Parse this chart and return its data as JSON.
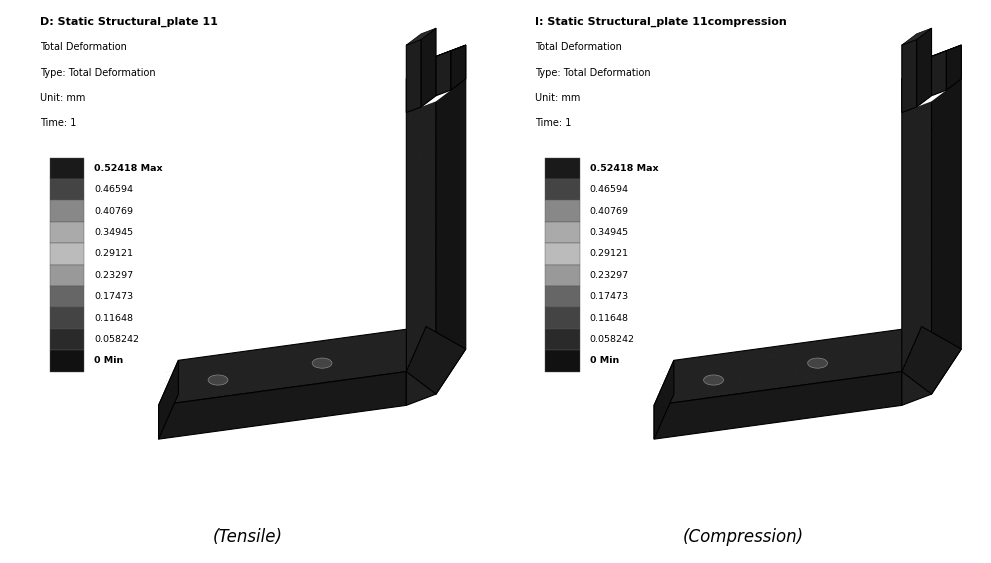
{
  "background_color": "#ffffff",
  "left_panel": {
    "title_line1": "D: Static Structural_plate 11",
    "title_line2": "Total Deformation",
    "title_line3": "Type: Total Deformation",
    "title_line4": "Unit: mm",
    "title_line5": "Time: 1",
    "caption": "(Tensile)"
  },
  "right_panel": {
    "title_line1": "I: Static Structural_plate 11compression",
    "title_line2": "Total Deformation",
    "title_line3": "Type: Total Deformation",
    "title_line4": "Unit: mm",
    "title_line5": "Time: 1",
    "caption": "(Compression)"
  },
  "colorbar_labels": [
    "0.52418 Max",
    "0.46594",
    "0.40769",
    "0.34945",
    "0.29121",
    "0.23297",
    "0.17473",
    "0.11648",
    "0.058242",
    "0 Min"
  ],
  "colorbar_colors_top_to_bottom": [
    "#1a1a1a",
    "#444444",
    "#888888",
    "#aaaaaa",
    "#bbbbbb",
    "#999999",
    "#666666",
    "#444444",
    "#2a2a2a",
    "#111111"
  ]
}
